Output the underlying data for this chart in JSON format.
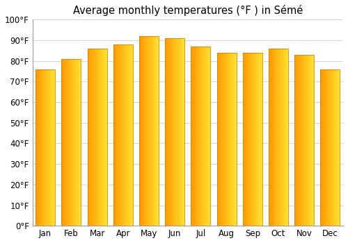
{
  "title": "Average monthly temperatures (°F ) in Sémé",
  "months": [
    "Jan",
    "Feb",
    "Mar",
    "Apr",
    "May",
    "Jun",
    "Jul",
    "Aug",
    "Sep",
    "Oct",
    "Nov",
    "Dec"
  ],
  "values": [
    76,
    81,
    86,
    88,
    92,
    91,
    87,
    84,
    84,
    86,
    83,
    76
  ],
  "bar_color_main": "#FFA500",
  "bar_color_light": "#FFD060",
  "bar_edge_color": "#E08000",
  "background_color": "#ffffff",
  "grid_color": "#cccccc",
  "ylim": [
    0,
    100
  ],
  "yticks": [
    0,
    10,
    20,
    30,
    40,
    50,
    60,
    70,
    80,
    90,
    100
  ],
  "title_fontsize": 10.5,
  "tick_fontsize": 8.5,
  "bar_width": 0.75
}
